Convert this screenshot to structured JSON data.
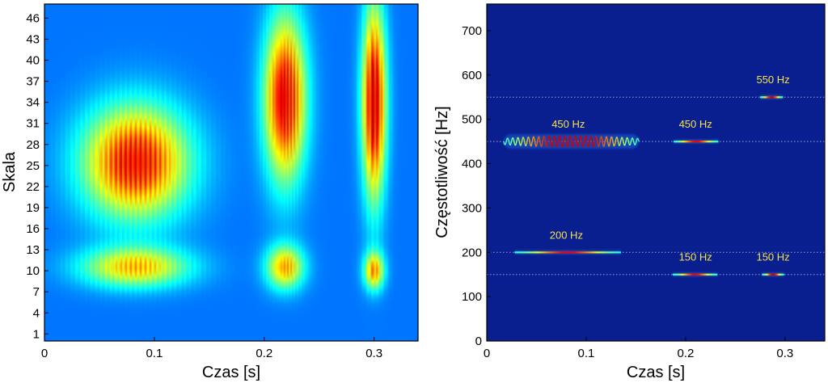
{
  "chart_data": [
    {
      "type": "heatmap",
      "title": "",
      "xlabel": "Czas [s]",
      "ylabel": "Skala",
      "xlim": [
        0,
        0.34
      ],
      "ylim": [
        0,
        48
      ],
      "x_ticks": [
        0,
        0.1,
        0.2,
        0.3
      ],
      "x_tick_labels": [
        "0",
        "0.1",
        "0.2",
        "0.3"
      ],
      "y_ticks": [
        1,
        4,
        7,
        10,
        13,
        16,
        19,
        22,
        25,
        28,
        31,
        34,
        37,
        40,
        43,
        46
      ],
      "y_tick_labels": [
        "1",
        "4",
        "7",
        "10",
        "13",
        "16",
        "19",
        "22",
        "25",
        "28",
        "31",
        "34",
        "37",
        "40",
        "43",
        "46"
      ],
      "colormap": "jet",
      "background_color": "#0a1f8f",
      "blobs": [
        {
          "t": 0.083,
          "scale": 25.5,
          "st": 0.033,
          "ss": 5.5,
          "peak": 0.78,
          "fringe": 0.0045
        },
        {
          "t": 0.083,
          "scale": 10.5,
          "st": 0.034,
          "ss": 2.0,
          "peak": 0.52,
          "fringe": 0.0045
        },
        {
          "t": 0.219,
          "scale": 34.5,
          "st": 0.013,
          "ss": 8.0,
          "peak": 0.82,
          "fringe": 0.0028
        },
        {
          "t": 0.219,
          "scale": 10.5,
          "st": 0.012,
          "ss": 2.2,
          "peak": 0.55,
          "fringe": 0.0028
        },
        {
          "t": 0.3,
          "scale": 34.0,
          "st": 0.0075,
          "ss": 9.5,
          "peak": 0.86,
          "fringe": 0.0022
        },
        {
          "t": 0.3,
          "scale": 10.0,
          "st": 0.0065,
          "ss": 1.9,
          "peak": 0.55,
          "fringe": 0.0022
        }
      ]
    },
    {
      "type": "heatmap",
      "title": "",
      "xlabel": "Czas [s]",
      "ylabel": "Częstotliwość [Hz]",
      "xlim": [
        0,
        0.34
      ],
      "ylim": [
        0,
        760
      ],
      "x_ticks": [
        0,
        0.1,
        0.2,
        0.3
      ],
      "x_tick_labels": [
        "0",
        "0.1",
        "0.2",
        "0.3"
      ],
      "y_ticks": [
        0,
        100,
        200,
        300,
        400,
        500,
        600,
        700
      ],
      "y_tick_labels": [
        "0",
        "100",
        "200",
        "300",
        "400",
        "500",
        "600",
        "700"
      ],
      "background_color": "#0a1f8f",
      "reference_lines_hz": [
        150,
        200,
        450,
        550
      ],
      "components": [
        {
          "freq": 200,
          "t_start": 0.028,
          "t_end": 0.135,
          "peak": 0.55,
          "wave": false
        },
        {
          "freq": 450,
          "t_start": 0.017,
          "t_end": 0.153,
          "peak": 0.85,
          "wave": true
        },
        {
          "freq": 450,
          "t_start": 0.188,
          "t_end": 0.233,
          "peak": 0.55,
          "wave": false
        },
        {
          "freq": 150,
          "t_start": 0.187,
          "t_end": 0.232,
          "peak": 0.55,
          "wave": false
        },
        {
          "freq": 550,
          "t_start": 0.275,
          "t_end": 0.298,
          "peak": 0.6,
          "wave": false
        },
        {
          "freq": 150,
          "t_start": 0.277,
          "t_end": 0.299,
          "peak": 0.6,
          "wave": false
        }
      ],
      "annotations": [
        {
          "text": "450 Hz",
          "t": 0.082,
          "freq": 450
        },
        {
          "text": "450 Hz",
          "t": 0.21,
          "freq": 450
        },
        {
          "text": "550 Hz",
          "t": 0.288,
          "freq": 550
        },
        {
          "text": "200 Hz",
          "t": 0.08,
          "freq": 200
        },
        {
          "text": "150 Hz",
          "t": 0.21,
          "freq": 150
        },
        {
          "text": "150 Hz",
          "t": 0.288,
          "freq": 150
        }
      ]
    }
  ]
}
